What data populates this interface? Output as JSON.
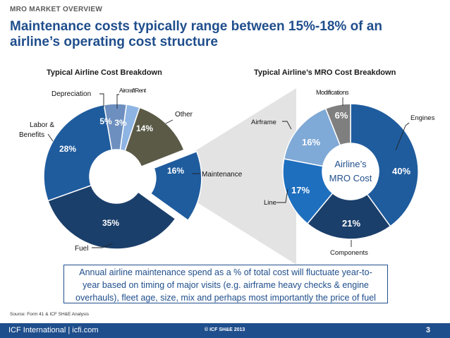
{
  "header": {
    "overline": "MRO MARKET OVERVIEW",
    "title": "Maintenance costs typically range between 15%-18% of an airline’s operating cost structure"
  },
  "chart_data": [
    {
      "type": "pie",
      "title": "Typical Airline Cost Breakdown",
      "categories": [
        "Aircraft Rent",
        "Other",
        "Maintenance",
        "Fuel",
        "Labor & Benefits",
        "Depreciation"
      ],
      "values": [
        3,
        14,
        16,
        35,
        28,
        5
      ],
      "value_labels": [
        "3%",
        "14%",
        "16%",
        "35%",
        "28%",
        "5%"
      ],
      "category_labels": [
        "AircraftRent",
        "Other",
        "Maintenance",
        "Fuel",
        "Labor & Benefits",
        "Depreciation"
      ],
      "colors": [
        "#8eb4e3",
        "#5a5a47",
        "#1f5c9e",
        "#1b3f6b",
        "#1f5c9e",
        "#6d8fbf"
      ],
      "exploded": "Maintenance"
    },
    {
      "type": "pie",
      "title": "Typical Airline’s MRO Cost Breakdown",
      "center_label": [
        "Airline’s",
        "MRO Cost"
      ],
      "categories": [
        "Engines",
        "Components",
        "Line",
        "Airframe",
        "Modifications"
      ],
      "values": [
        40,
        21,
        17,
        16,
        6
      ],
      "value_labels": [
        "40%",
        "21%",
        "17%",
        "16%",
        "6%"
      ],
      "colors": [
        "#1f5c9e",
        "#1b3f6b",
        "#1f6fbf",
        "#7fa9d6",
        "#7f7f7f"
      ]
    }
  ],
  "callout": {
    "lines": [
      "Annual airline maintenance spend as a % of total cost will fluctuate year-to-",
      "year based on timing of major visits (e.g. airframe heavy checks & engine",
      "overhauls), fleet age, size, mix and perhaps most importantly the price of fuel"
    ]
  },
  "source": "Source: Form 41 & ICF SH&E Analysis",
  "footer": {
    "left": "ICF International | icfi.com",
    "center": "© ICF SH&E 2013",
    "page": "3"
  }
}
